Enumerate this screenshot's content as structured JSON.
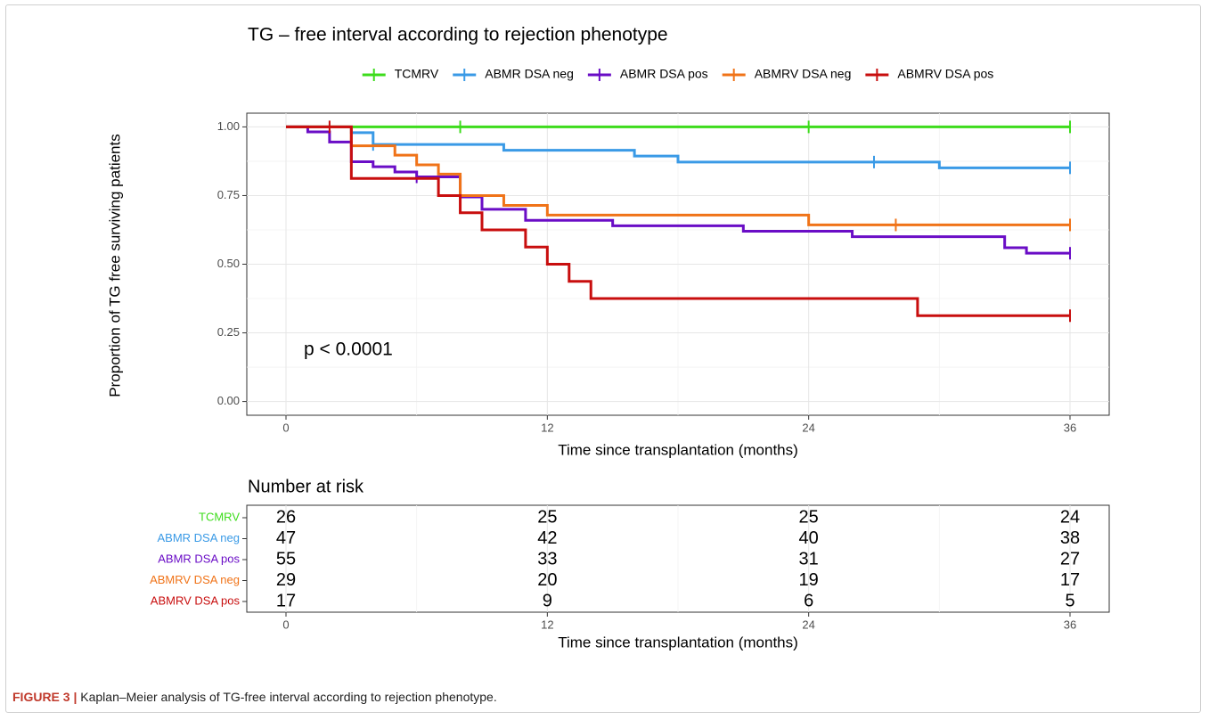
{
  "chart_data": {
    "type": "step",
    "title": "TG – free interval according to rejection phenotype",
    "xlabel": "Time since transplantation (months)",
    "ylabel": "Proportion of TG free surviving patients",
    "annotation": "p < 0.0001",
    "legend": "top",
    "grid": true,
    "xlim": [
      -1.8,
      37.8
    ],
    "ylim": [
      -0.05,
      1.05
    ],
    "xticks": [
      0,
      12,
      24,
      36
    ],
    "yticks": [
      {
        "value": 0,
        "label": "0.00"
      },
      {
        "value": 0.25,
        "label": "0.25"
      },
      {
        "value": 0.5,
        "label": "0.50"
      },
      {
        "value": 0.75,
        "label": "0.75"
      },
      {
        "value": 1,
        "label": "1.00"
      }
    ],
    "xminor": [
      6,
      18,
      30
    ],
    "yminor": [
      0.125,
      0.375,
      0.625,
      0.875
    ],
    "series": [
      {
        "name": "TCMRV",
        "color": "#3ddc1c",
        "x": [
          0,
          36
        ],
        "values": [
          1,
          1
        ],
        "censor_x": [
          8,
          24,
          36
        ]
      },
      {
        "name": "ABMR DSA neg",
        "color": "#3a9ae6",
        "x": [
          0,
          3,
          4,
          10,
          16,
          18,
          30,
          36
        ],
        "values": [
          1,
          0.979,
          0.936,
          0.915,
          0.894,
          0.872,
          0.851,
          0.851
        ],
        "censor_x": [
          4,
          27,
          36
        ]
      },
      {
        "name": "ABMR DSA pos",
        "color": "#6a0dc6",
        "x": [
          0,
          1,
          2,
          3,
          4,
          5,
          6,
          8,
          9,
          11,
          15,
          21,
          26,
          33,
          34,
          36
        ],
        "values": [
          1,
          0.982,
          0.945,
          0.873,
          0.855,
          0.836,
          0.818,
          0.745,
          0.7,
          0.66,
          0.64,
          0.62,
          0.6,
          0.56,
          0.54,
          0.54
        ],
        "censor_x": [
          6,
          36
        ]
      },
      {
        "name": "ABMRV DSA neg",
        "color": "#f07318",
        "x": [
          0,
          3,
          5,
          6,
          7,
          8,
          10,
          12,
          24,
          36
        ],
        "values": [
          1,
          0.931,
          0.897,
          0.862,
          0.828,
          0.75,
          0.714,
          0.679,
          0.643,
          0.643
        ],
        "censor_x": [
          3,
          28,
          36
        ]
      },
      {
        "name": "ABMRV DSA pos",
        "color": "#c80e0e",
        "x": [
          0,
          3,
          7,
          8,
          9,
          11,
          12,
          13,
          14,
          29,
          36
        ],
        "values": [
          1,
          0.8125,
          0.75,
          0.6875,
          0.625,
          0.5625,
          0.5,
          0.4375,
          0.375,
          0.3125,
          0.3125
        ],
        "censor_x": [
          2,
          36
        ]
      }
    ],
    "risk_table": {
      "title": "Number at risk",
      "times": [
        0,
        12,
        24,
        36
      ],
      "counts": [
        [
          26,
          25,
          25,
          24
        ],
        [
          47,
          42,
          40,
          38
        ],
        [
          55,
          33,
          31,
          27
        ],
        [
          29,
          20,
          19,
          17
        ],
        [
          17,
          9,
          6,
          5
        ]
      ]
    }
  },
  "caption": {
    "label": "FIGURE 3 |",
    "text": "Kaplan–Meier analysis of TG-free interval according to rejection phenotype."
  }
}
